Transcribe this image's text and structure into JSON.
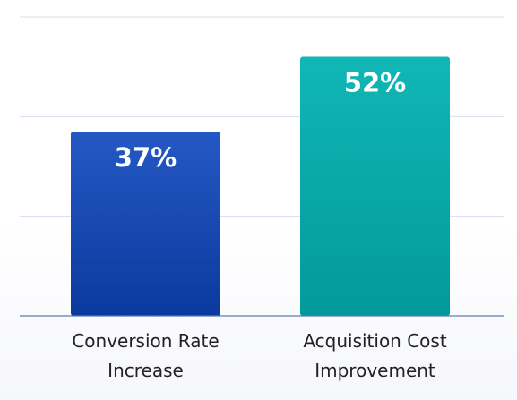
{
  "chart_data": {
    "type": "bar",
    "categories": [
      [
        "Conversion Rate",
        "Increase"
      ],
      [
        "Acquisition Cost",
        "Improvement"
      ]
    ],
    "values": [
      37,
      52
    ],
    "value_labels": [
      "37%",
      "52%"
    ],
    "ylim": [
      0,
      60
    ],
    "grid": true,
    "colors": {
      "bar_1_top": "#2558c4",
      "bar_1_bottom": "#0a3a9e",
      "bar_2_top": "#10b7b5",
      "bar_2_bottom": "#03999a",
      "gridline": "#d5ddee",
      "baseline": "#5d7bb5"
    }
  }
}
